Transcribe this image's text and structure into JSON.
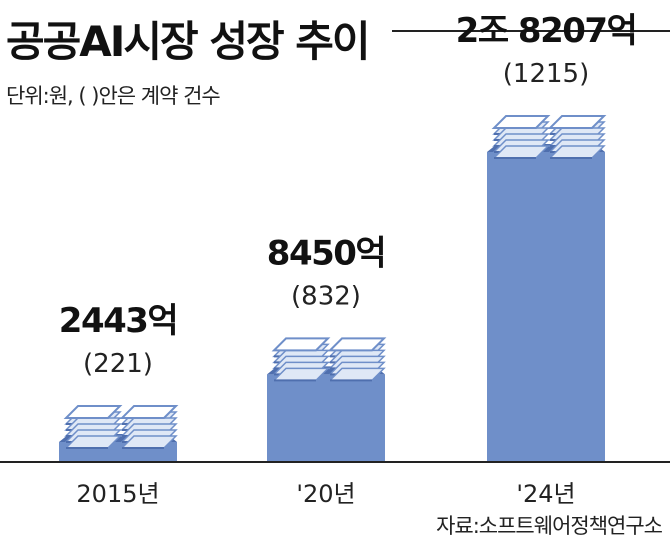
{
  "title": "공공AI시장 성장 추이",
  "subtitle": "단위:원, (    )안은 계약 건수",
  "source": "자료:소프트웨어정책연구소",
  "colors": {
    "bar": "#6f8fc9",
    "bar_light": "#dfe8f6",
    "bar_dark": "#4f6fae",
    "axis": "#222222"
  },
  "chart_data": {
    "type": "bar",
    "categories": [
      "2015년",
      "'20년",
      "'24년"
    ],
    "values": [
      2443,
      8450,
      28207
    ],
    "value_labels": [
      "2443억",
      "8450억",
      "2조 8207억"
    ],
    "contract_counts": [
      221,
      832,
      1215
    ],
    "count_labels": [
      "(221)",
      "(832)",
      "(1215)"
    ],
    "unit": "억원"
  }
}
